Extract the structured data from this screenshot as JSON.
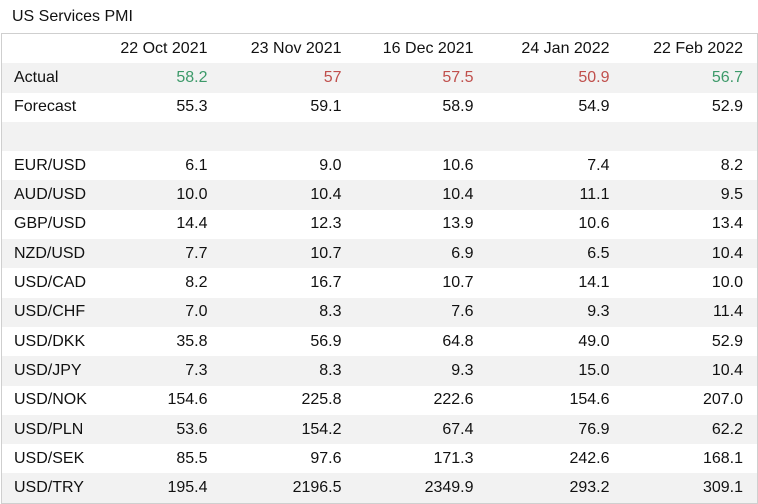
{
  "title": "US Services PMI",
  "columns": [
    "22 Oct 2021",
    "23 Nov 2021",
    "16 Dec 2021",
    "24 Jan 2022",
    "22 Feb 2022"
  ],
  "actual": {
    "label": "Actual",
    "values": [
      "58.2",
      "57",
      "57.5",
      "50.9",
      "56.7"
    ],
    "colors": [
      "up",
      "down",
      "down",
      "down",
      "up"
    ]
  },
  "forecast": {
    "label": "Forecast",
    "values": [
      "55.3",
      "59.1",
      "58.9",
      "54.9",
      "52.9"
    ]
  },
  "pairs": [
    {
      "label": "EUR/USD",
      "values": [
        "6.1",
        "9.0",
        "10.6",
        "7.4",
        "8.2"
      ]
    },
    {
      "label": "AUD/USD",
      "values": [
        "10.0",
        "10.4",
        "10.4",
        "11.1",
        "9.5"
      ]
    },
    {
      "label": "GBP/USD",
      "values": [
        "14.4",
        "12.3",
        "13.9",
        "10.6",
        "13.4"
      ]
    },
    {
      "label": "NZD/USD",
      "values": [
        "7.7",
        "10.7",
        "6.9",
        "6.5",
        "10.4"
      ]
    },
    {
      "label": "USD/CAD",
      "values": [
        "8.2",
        "16.7",
        "10.7",
        "14.1",
        "10.0"
      ]
    },
    {
      "label": "USD/CHF",
      "values": [
        "7.0",
        "8.3",
        "7.6",
        "9.3",
        "11.4"
      ]
    },
    {
      "label": "USD/DKK",
      "values": [
        "35.8",
        "56.9",
        "64.8",
        "49.0",
        "52.9"
      ]
    },
    {
      "label": "USD/JPY",
      "values": [
        "7.3",
        "8.3",
        "9.3",
        "15.0",
        "10.4"
      ]
    },
    {
      "label": "USD/NOK",
      "values": [
        "154.6",
        "225.8",
        "222.6",
        "154.6",
        "207.0"
      ]
    },
    {
      "label": "USD/PLN",
      "values": [
        "53.6",
        "154.2",
        "67.4",
        "76.9",
        "62.2"
      ]
    },
    {
      "label": "USD/SEK",
      "values": [
        "85.5",
        "97.6",
        "171.3",
        "242.6",
        "168.1"
      ]
    },
    {
      "label": "USD/TRY",
      "values": [
        "195.4",
        "2196.5",
        "2349.9",
        "293.2",
        "309.1"
      ]
    }
  ]
}
